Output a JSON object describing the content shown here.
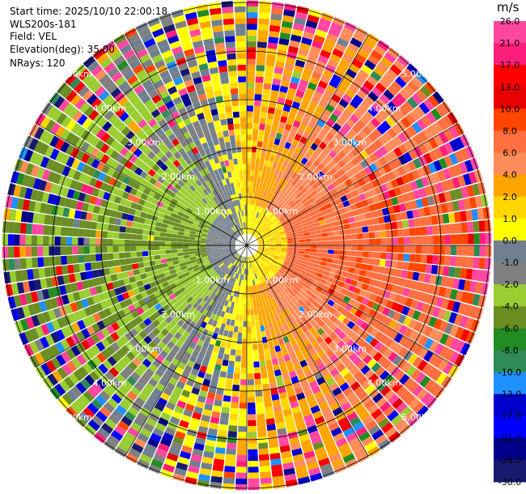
{
  "header": {
    "start_time": "Start time: 2025/10/10 22:00:18",
    "instrument": "WLS200s-181",
    "field": "Field: VEL",
    "elevation": "Elevation(deg): 35.00",
    "nrays": "NRays: 120"
  },
  "colorbar": {
    "title": "m/s",
    "ticks": [
      "26.0",
      "21.0",
      "17.0",
      "13.0",
      "10.0",
      "8.0",
      "6.0",
      "4.0",
      "2.0",
      "1.0",
      "0.0",
      "-1.0",
      "-2.0",
      "-4.0",
      "-6.0",
      "-8.0",
      "-10.0",
      "-13.0",
      "-17.0",
      "-21.0",
      "-26.0",
      "-30.0"
    ],
    "colors": [
      "#ff47a0",
      "#ff1f7a",
      "#ff0000",
      "#e60000",
      "#ff4500",
      "#ff6f3f",
      "#ff8c5a",
      "#ffa500",
      "#ffd700",
      "#ffff00",
      "#708090",
      "#808080",
      "#9acd32",
      "#6b8e23",
      "#228b22",
      "#2e8b57",
      "#1e90ff",
      "#0000cd",
      "#0000ff",
      "#00008b",
      "#191970"
    ]
  },
  "range_rings": {
    "labels_nw": [
      "1.00km",
      "2.00km",
      "3.00km",
      "4.00km",
      "5.00km"
    ],
    "labels_ne": [
      "1.00km",
      "2.00km",
      "3.00km",
      "4.00km",
      "5.00km"
    ],
    "labels_se": [
      "1.00km",
      "2.00km",
      "3.00km",
      "4.00km",
      "5.00km"
    ],
    "labels_sw": [
      "1.00km",
      "2.00km",
      "3.00km",
      "4.00km",
      "5.00km"
    ]
  },
  "chart_data": {
    "type": "heatmap",
    "description_kind": "PPI radial velocity scan",
    "nrays": 120,
    "max_range_km": 5.0,
    "range_rings_km": [
      1,
      2,
      3,
      4,
      5
    ],
    "clim": [
      -30,
      30
    ],
    "unit": "m/s",
    "sectors": [
      {
        "az_from": 0,
        "az_to": 40,
        "dominant": "mixed"
      },
      {
        "az_from": 40,
        "az_to": 130,
        "dominant": "positive"
      },
      {
        "az_from": 130,
        "az_to": 175,
        "dominant": "mixed"
      },
      {
        "az_from": 175,
        "az_to": 300,
        "dominant": "negative"
      },
      {
        "az_from": 300,
        "az_to": 360,
        "dominant": "mixed"
      }
    ]
  }
}
